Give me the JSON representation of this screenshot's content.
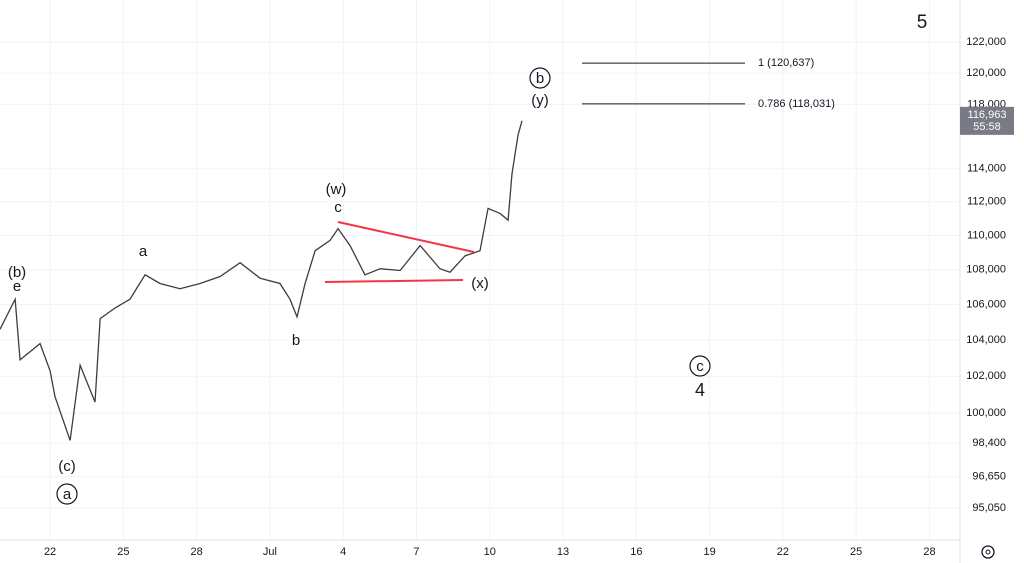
{
  "chart_data": {
    "type": "line",
    "log": true,
    "grid": true,
    "color": "#3d3d3d",
    "x": [
      19.95,
      20.57,
      20.77,
      21.59,
      22,
      22.2,
      22.82,
      23.23,
      23.84,
      24.05,
      24.66,
      25.27,
      25.89,
      26.5,
      27.32,
      28.14,
      28.96,
      29.78,
      30.6,
      31.41,
      31.82,
      32.11,
      32.44,
      32.85,
      33.46,
      33.79,
      34.28,
      34.89,
      35.51,
      36.33,
      37.15,
      37.96,
      38.37,
      38.99,
      39.6,
      39.93,
      40.42,
      40.75,
      40.91,
      41.16,
      41.32
    ],
    "values": [
      104600,
      106300,
      102900,
      103800,
      102300,
      100900,
      98550,
      102600,
      100600,
      105200,
      105800,
      106300,
      107700,
      107200,
      106900,
      107200,
      107600,
      108400,
      107500,
      107200,
      106300,
      105300,
      107200,
      109100,
      109700,
      110400,
      109400,
      107700,
      108050,
      107950,
      109400,
      108050,
      107850,
      108800,
      109100,
      111600,
      111300,
      110900,
      113700,
      116100,
      116963
    ],
    "xlim": [
      19.95,
      59.25
    ],
    "xticks": [
      {
        "value": 22,
        "label": "22"
      },
      {
        "value": 25,
        "label": "25"
      },
      {
        "value": 28,
        "label": "28"
      },
      {
        "value": 31,
        "label": "Jul"
      },
      {
        "value": 34,
        "label": "4"
      },
      {
        "value": 37,
        "label": "7"
      },
      {
        "value": 40,
        "label": "10"
      },
      {
        "value": 43,
        "label": "13"
      },
      {
        "value": 46,
        "label": "16"
      },
      {
        "value": 49,
        "label": "19"
      },
      {
        "value": 52,
        "label": "22"
      },
      {
        "value": 55,
        "label": "25"
      },
      {
        "value": 58,
        "label": "28"
      }
    ],
    "ylim": [
      93430,
      124790
    ],
    "yticks": [
      {
        "value": 122000,
        "label": "122,000"
      },
      {
        "value": 120000,
        "label": "120,000"
      },
      {
        "value": 118000,
        "label": "118,000"
      },
      {
        "value": 114000,
        "label": "114,000"
      },
      {
        "value": 112000,
        "label": "112,000"
      },
      {
        "value": 110000,
        "label": "110,000"
      },
      {
        "value": 108000,
        "label": "108,000"
      },
      {
        "value": 106000,
        "label": "106,000"
      },
      {
        "value": 104000,
        "label": "104,000"
      },
      {
        "value": 102000,
        "label": "102,000"
      },
      {
        "value": 100000,
        "label": "100,000"
      },
      {
        "value": 98400,
        "label": "98,400"
      },
      {
        "value": 96650,
        "label": "96,650"
      },
      {
        "value": 95050,
        "label": "95,050"
      }
    ],
    "levels": [
      {
        "value": 120637,
        "label": "1 (120,637)"
      },
      {
        "value": 118031,
        "label": "0.786 (118,031)"
      }
    ],
    "last_price": {
      "value": 116963,
      "label": "116,963",
      "countdown": "55:58"
    },
    "annotations": [
      "5",
      "(b)",
      "e",
      "a",
      "b",
      "(w)",
      "c",
      "(x)",
      "b",
      "(y)",
      "c",
      "4",
      "(c)",
      "a"
    ]
  }
}
